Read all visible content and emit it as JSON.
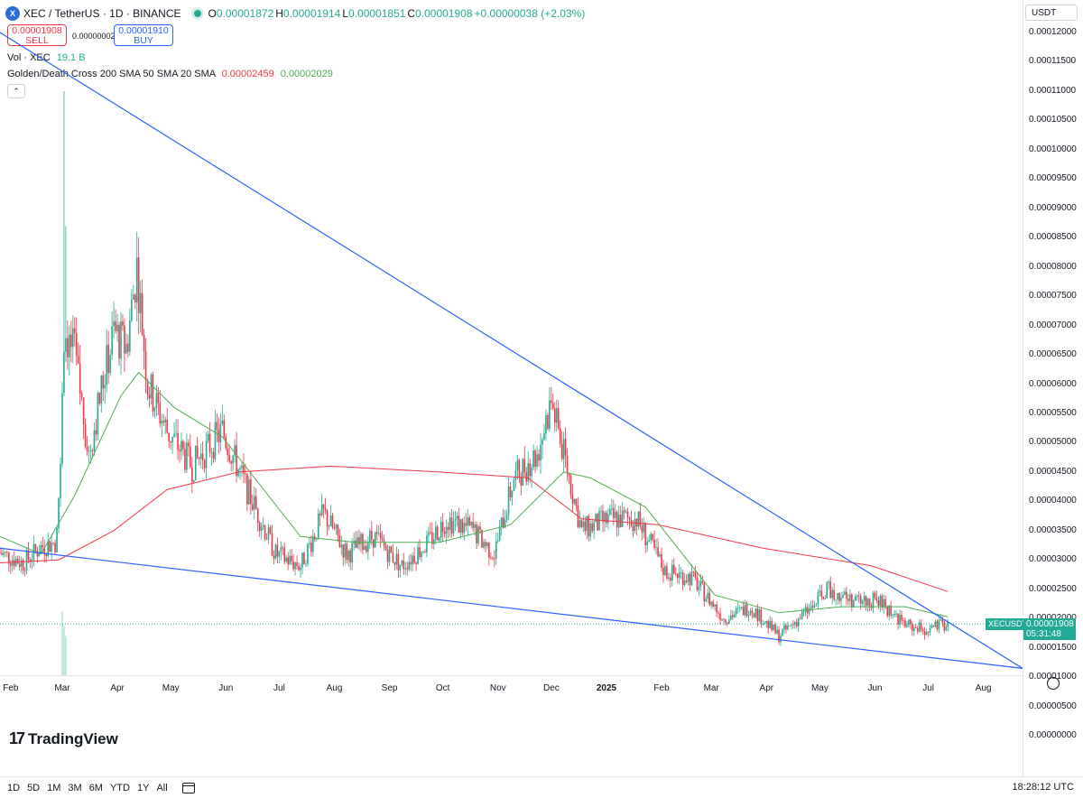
{
  "header": {
    "symbol": "XEC / TetherUS · 1D · BINANCE",
    "ohlc": {
      "o_label": "O",
      "o": "0.00001872",
      "h_label": "H",
      "h": "0.00001914",
      "l_label": "L",
      "l": "0.00001851",
      "c_label": "C",
      "c": "0.00001908",
      "change": "+0.00000038 (+2.03%)"
    },
    "sell_price": "0.00001908",
    "sell_label": "SELL",
    "spread": "0.00000002",
    "buy_price": "0.00001910",
    "buy_label": "BUY",
    "volume_label": "Vol · XEC",
    "volume_value": "19.1 B",
    "indicator_label": "Golden/Death Cross 200 SMA 50 SMA 20 SMA",
    "indicator_val_1": "0.00002459",
    "indicator_val_2": "0.00002029"
  },
  "price_axis": {
    "currency": "USDT",
    "ticks": [
      "0.00012000",
      "0.00011500",
      "0.00011000",
      "0.00010500",
      "0.00010000",
      "0.00009500",
      "0.00009000",
      "0.00008500",
      "0.00008000",
      "0.00007500",
      "0.00007000",
      "0.00006500",
      "0.00006000",
      "0.00005500",
      "0.00005000",
      "0.00004500",
      "0.00004000",
      "0.00003500",
      "0.00003000",
      "0.00002500",
      "0.00002000",
      "0.00001500",
      "0.00001000",
      "0.00000500",
      "0.00000000"
    ],
    "last_pair": "XECUSDT",
    "last_price": "0.00001908",
    "countdown": "05:31:48"
  },
  "time_axis": {
    "labels": [
      "Feb",
      "Mar",
      "Apr",
      "May",
      "Jun",
      "Jul",
      "Aug",
      "Sep",
      "Oct",
      "Nov",
      "Dec",
      "2025",
      "Feb",
      "Mar",
      "Apr",
      "May",
      "Jun",
      "Jul",
      "Aug"
    ]
  },
  "bottom": {
    "ranges": [
      "1D",
      "5D",
      "1M",
      "3M",
      "6M",
      "YTD",
      "1Y",
      "All"
    ],
    "clock": "18:28:12 UTC"
  },
  "branding": {
    "logo_text": "TradingView"
  },
  "colors": {
    "up": "#22ab94",
    "down": "#f23645",
    "sma200": "#f23645",
    "sma50": "#4caf50",
    "trendline": "#2962ff"
  },
  "chart_data": {
    "type": "candlestick",
    "y_range": [
      0,
      0.000121
    ],
    "x_range": [
      "2024-01-28",
      "2025-08-25"
    ],
    "close_series": [
      [
        "2024-01-28",
        3.12e-05
      ],
      [
        "2024-02-10",
        2.95e-05
      ],
      [
        "2024-02-20",
        3.22e-05
      ],
      [
        "2024-02-28",
        3.3e-05
      ],
      [
        "2024-03-02",
        4.5e-05
      ],
      [
        "2024-03-04",
        6.9e-05
      ],
      [
        "2024-03-10",
        6.5e-05
      ],
      [
        "2024-03-18",
        4.8e-05
      ],
      [
        "2024-03-25",
        5.9e-05
      ],
      [
        "2024-04-01",
        6.9e-05
      ],
      [
        "2024-04-08",
        6.6e-05
      ],
      [
        "2024-04-14",
        8e-05
      ],
      [
        "2024-04-20",
        6e-05
      ],
      [
        "2024-05-01",
        5.2e-05
      ],
      [
        "2024-05-15",
        4.6e-05
      ],
      [
        "2024-06-01",
        5.2e-05
      ],
      [
        "2024-06-15",
        4.2e-05
      ],
      [
        "2024-07-01",
        3.1e-05
      ],
      [
        "2024-07-15",
        2.9e-05
      ],
      [
        "2024-07-28",
        3.8e-05
      ],
      [
        "2024-08-10",
        3.1e-05
      ],
      [
        "2024-08-25",
        3.4e-05
      ],
      [
        "2024-09-10",
        2.9e-05
      ],
      [
        "2024-09-25",
        3.3e-05
      ],
      [
        "2024-10-05",
        3.7e-05
      ],
      [
        "2024-10-20",
        3.5e-05
      ],
      [
        "2024-11-01",
        3.1e-05
      ],
      [
        "2024-11-12",
        4.4e-05
      ],
      [
        "2024-11-25",
        4.8e-05
      ],
      [
        "2024-12-03",
        5.7e-05
      ],
      [
        "2024-12-10",
        4.8e-05
      ],
      [
        "2024-12-20",
        3.5e-05
      ],
      [
        "2025-01-05",
        3.7e-05
      ],
      [
        "2025-01-20",
        3.7e-05
      ],
      [
        "2025-02-05",
        2.8e-05
      ],
      [
        "2025-02-20",
        2.7e-05
      ],
      [
        "2025-03-10",
        2e-05
      ],
      [
        "2025-03-25",
        2.2e-05
      ],
      [
        "2025-04-10",
        1.7e-05
      ],
      [
        "2025-04-25",
        2.1e-05
      ],
      [
        "2025-05-08",
        2.5e-05
      ],
      [
        "2025-05-22",
        2.3e-05
      ],
      [
        "2025-06-05",
        2.3e-05
      ],
      [
        "2025-06-20",
        1.9e-05
      ],
      [
        "2025-07-01",
        1.8e-05
      ],
      [
        "2025-07-14",
        1.91e-05
      ]
    ],
    "sma200": [
      [
        "2024-01-28",
        2.95e-05
      ],
      [
        "2024-03-01",
        3e-05
      ],
      [
        "2024-04-01",
        3.5e-05
      ],
      [
        "2024-05-01",
        4.2e-05
      ],
      [
        "2024-06-10",
        4.5e-05
      ],
      [
        "2024-08-01",
        4.6e-05
      ],
      [
        "2024-10-01",
        4.5e-05
      ],
      [
        "2024-11-20",
        4.4e-05
      ],
      [
        "2024-12-20",
        3.7e-05
      ],
      [
        "2025-02-01",
        3.6e-05
      ],
      [
        "2025-04-01",
        3.2e-05
      ],
      [
        "2025-06-01",
        2.9e-05
      ],
      [
        "2025-07-14",
        2.46e-05
      ]
    ],
    "sma50": [
      [
        "2024-01-28",
        3.4e-05
      ],
      [
        "2024-02-20",
        3.1e-05
      ],
      [
        "2024-03-10",
        4.1e-05
      ],
      [
        "2024-04-05",
        5.8e-05
      ],
      [
        "2024-04-15",
        6.2e-05
      ],
      [
        "2024-05-05",
        5.6e-05
      ],
      [
        "2024-06-01",
        5.1e-05
      ],
      [
        "2024-07-15",
        3.4e-05
      ],
      [
        "2024-08-15",
        3.3e-05
      ],
      [
        "2024-10-01",
        3.3e-05
      ],
      [
        "2024-11-10",
        3.6e-05
      ],
      [
        "2024-12-10",
        4.5e-05
      ],
      [
        "2024-12-25",
        4.4e-05
      ],
      [
        "2025-01-25",
        3.9e-05
      ],
      [
        "2025-03-05",
        2.4e-05
      ],
      [
        "2025-04-10",
        2.1e-05
      ],
      [
        "2025-05-15",
        2.2e-05
      ],
      [
        "2025-06-20",
        2.2e-05
      ],
      [
        "2025-07-14",
        2.03e-05
      ]
    ],
    "trendlines": [
      {
        "from": [
          "2024-01-28",
          0.00012
        ],
        "to": [
          "2025-08-25",
          1.15e-05
        ]
      },
      {
        "from": [
          "2024-01-28",
          3.2e-05
        ],
        "to": [
          "2025-08-25",
          1.15e-05
        ]
      }
    ],
    "volume_peak_dates": [
      "2024-03-04",
      "2024-04-01",
      "2024-12-03",
      "2025-05-01"
    ]
  }
}
